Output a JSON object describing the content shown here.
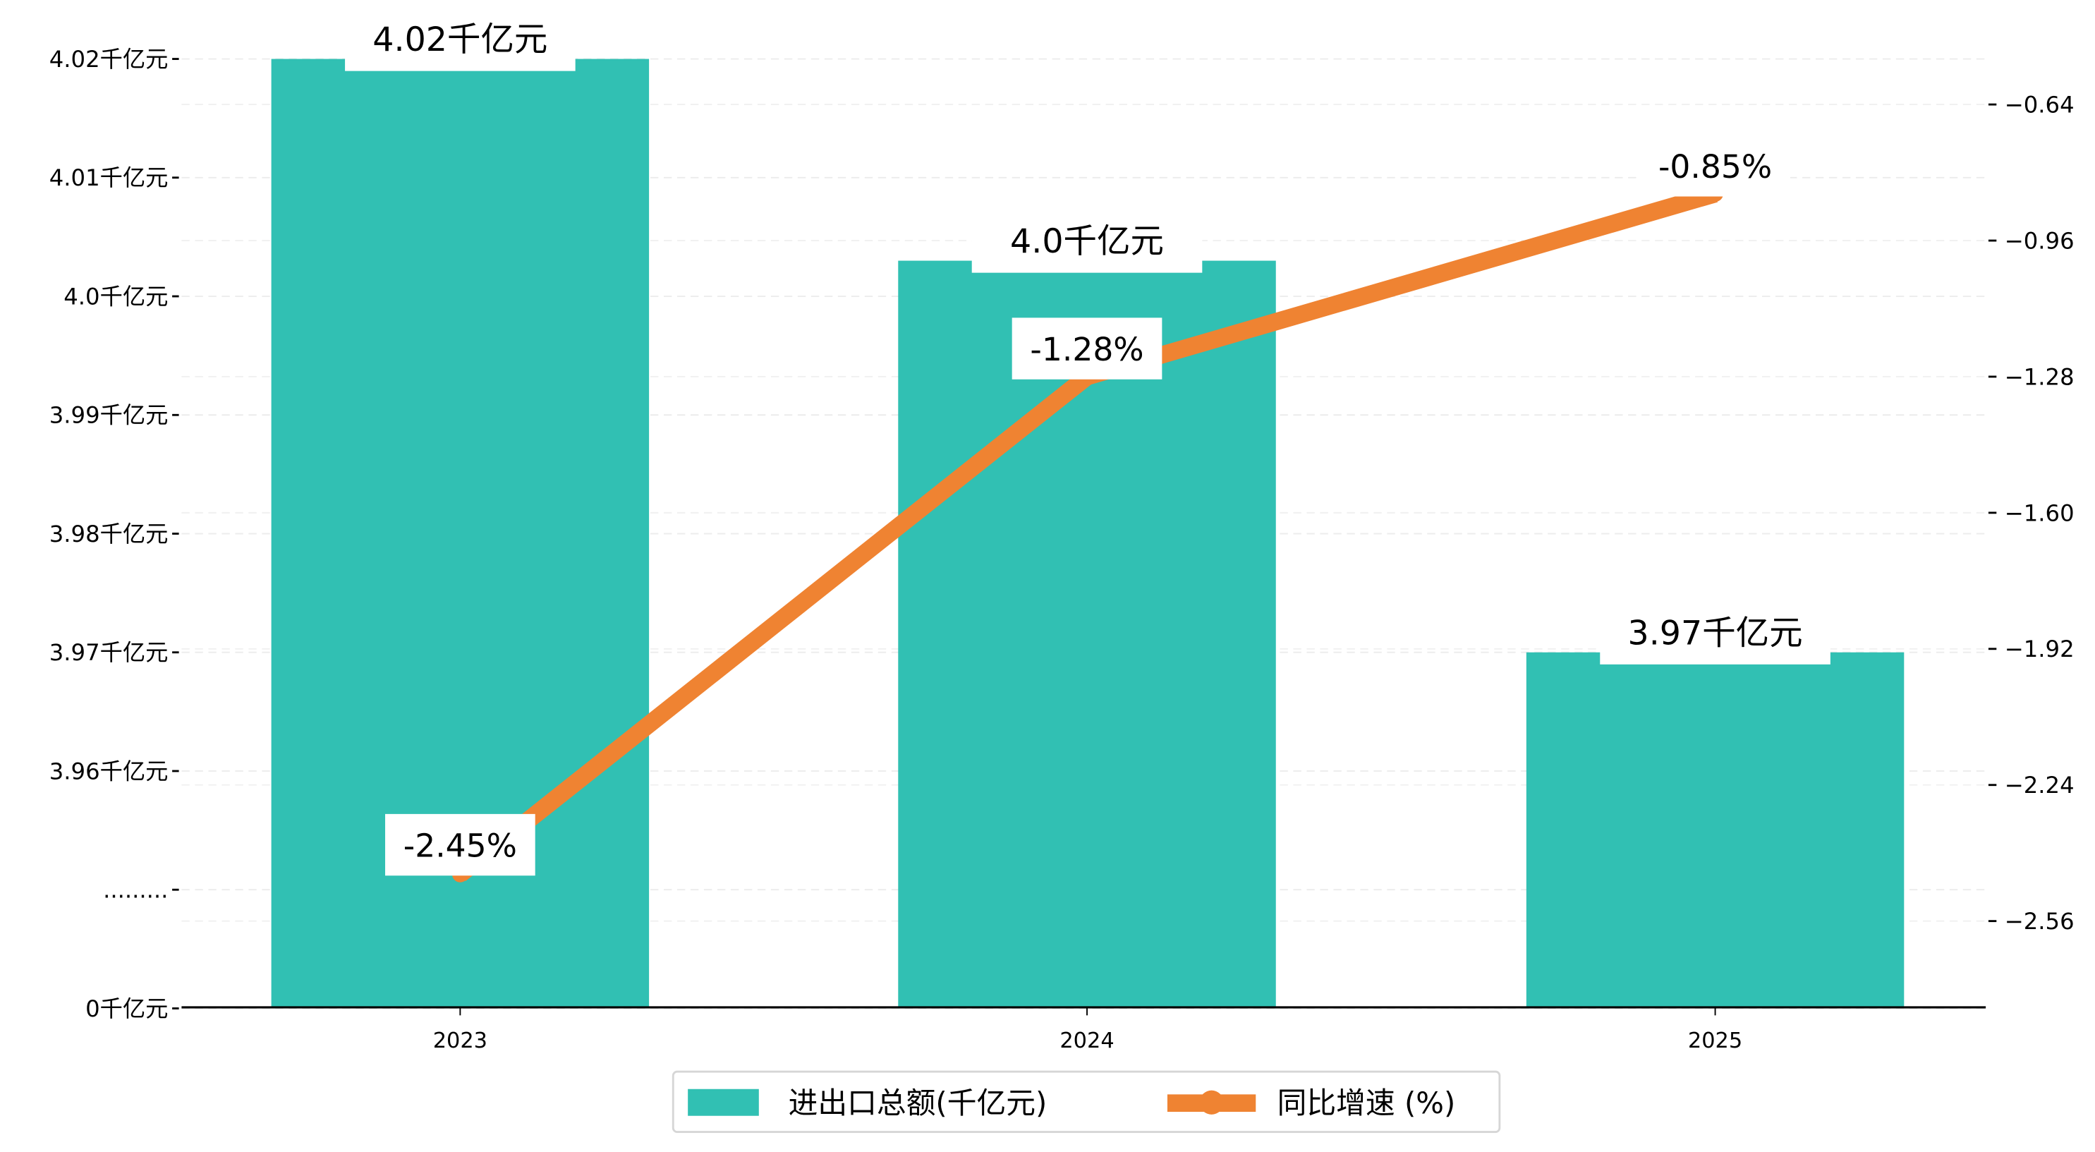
{
  "chart_data": {
    "type": "bar+line",
    "categories": [
      "2023",
      "2024",
      "2025"
    ],
    "series": [
      {
        "name": "进出口总额(千亿元)",
        "type": "bar",
        "axis": "left",
        "color": "#31c0b3",
        "values": [
          4.02,
          4.003,
          3.97
        ],
        "labels": [
          "4.02千亿元",
          "4.0千亿元",
          "3.97千亿元"
        ]
      },
      {
        "name": "同比增速 (%)",
        "type": "line",
        "axis": "right",
        "color": "#ef8332",
        "values": [
          -2.45,
          -1.28,
          -0.85
        ],
        "labels": [
          "-2.45%",
          "-1.28%",
          "-0.85%"
        ]
      }
    ],
    "left_axis": {
      "broken": true,
      "ticks": [
        {
          "value": 4.02,
          "label": "4.02千亿元"
        },
        {
          "value": 4.01,
          "label": "4.01千亿元"
        },
        {
          "value": 4.0,
          "label": "4.0千亿元"
        },
        {
          "value": 3.99,
          "label": "3.99千亿元"
        },
        {
          "value": 3.98,
          "label": "3.98千亿元"
        },
        {
          "value": 3.97,
          "label": "3.97千亿元"
        },
        {
          "value": 3.96,
          "label": "3.96千亿元"
        },
        {
          "value": 3.95,
          "label": "........."
        },
        {
          "value": 3.94,
          "label": "0千亿元"
        }
      ]
    },
    "right_axis": {
      "ticks": [
        -0.64,
        -0.96,
        -1.28,
        -1.6,
        -1.92,
        -2.24,
        -2.56
      ],
      "tick_labels": [
        "−0.64",
        "−0.96",
        "−1.28",
        "−1.60",
        "−1.92",
        "−2.24",
        "−2.56"
      ],
      "ylim": [
        -2.77,
        -0.53
      ]
    },
    "grid": true,
    "legend": {
      "placement": "bottom-center",
      "items": [
        "进出口总额(千亿元)",
        "同比增速 (%)"
      ]
    }
  }
}
